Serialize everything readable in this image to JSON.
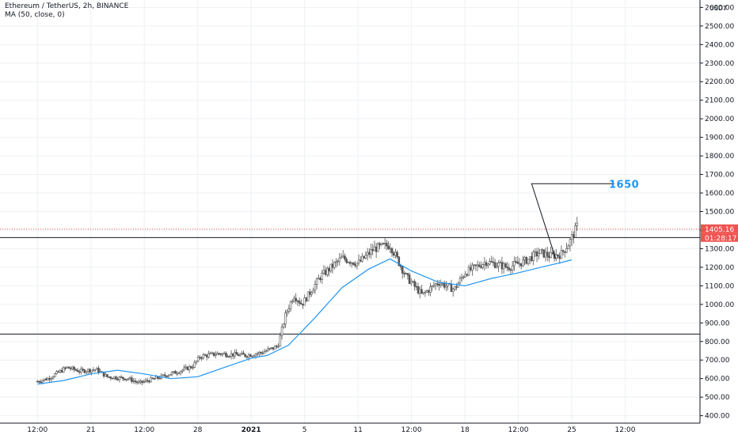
{
  "header": {
    "symbol_line": "Ethereum / TetherUS, 2h, BINANCE",
    "ma_line": "MA (50, close, 0)"
  },
  "colors": {
    "up": "#26a69a",
    "candle": "#555555",
    "ma": "#2196f3",
    "grid": "#eef0f3",
    "price_tag": "#ef5350",
    "hline": "#131722",
    "target": "#2196f3"
  },
  "chart_data": {
    "type": "candlestick",
    "currency": "USDT",
    "y_ticks": [
      400,
      500,
      600,
      700,
      800,
      900,
      1000,
      1100,
      1200,
      1300,
      1400,
      1500,
      1600,
      1700,
      1800,
      1900,
      2000,
      2100,
      2200,
      2300,
      2400,
      2500,
      2600
    ],
    "y_tick_labels": [
      "400.00",
      "500.00",
      "600.00",
      "700.00",
      "800.00",
      "900.00",
      "1000.00",
      "1100.00",
      "1200.00",
      "1300.00",
      "1400.00",
      "1500.00",
      "1600.00",
      "1700.00",
      "1800.00",
      "1900.00",
      "2000.00",
      "2100.00",
      "2200.00",
      "2300.00",
      "2400.00",
      "2500.00",
      "2600.00"
    ],
    "x_ticks": [
      {
        "label": "12:00",
        "t": 0
      },
      {
        "label": "21",
        "t": 1
      },
      {
        "label": "12:00",
        "t": 2
      },
      {
        "label": "28",
        "t": 3
      },
      {
        "label": "2021",
        "t": 4,
        "bold": true
      },
      {
        "label": "5",
        "t": 5
      },
      {
        "label": "11",
        "t": 6
      },
      {
        "label": "12:00",
        "t": 7
      },
      {
        "label": "18",
        "t": 8
      },
      {
        "label": "12:00",
        "t": 9
      },
      {
        "label": "25",
        "t": 10
      },
      {
        "label": "12:00",
        "t": 11
      }
    ],
    "close_path": [
      [
        0,
        585
      ],
      [
        0.2,
        600
      ],
      [
        0.55,
        660
      ],
      [
        0.8,
        640
      ],
      [
        1.1,
        650
      ],
      [
        1.3,
        610
      ],
      [
        1.7,
        600
      ],
      [
        1.9,
        575
      ],
      [
        2.2,
        600
      ],
      [
        2.6,
        635
      ],
      [
        2.9,
        665
      ],
      [
        3.05,
        720
      ],
      [
        3.4,
        735
      ],
      [
        3.9,
        725
      ],
      [
        4.2,
        740
      ],
      [
        4.5,
        775
      ],
      [
        4.65,
        950
      ],
      [
        4.8,
        1050
      ],
      [
        4.95,
        1000
      ],
      [
        5.3,
        1150
      ],
      [
        5.7,
        1250
      ],
      [
        6.0,
        1220
      ],
      [
        6.3,
        1300
      ],
      [
        6.6,
        1320
      ],
      [
        6.9,
        1150
      ],
      [
        7.2,
        1050
      ],
      [
        7.5,
        1120
      ],
      [
        7.8,
        1080
      ],
      [
        8.0,
        1170
      ],
      [
        8.4,
        1230
      ],
      [
        8.8,
        1200
      ],
      [
        9.1,
        1230
      ],
      [
        9.4,
        1280
      ],
      [
        9.6,
        1260
      ],
      [
        9.8,
        1270
      ],
      [
        9.95,
        1330
      ],
      [
        10.1,
        1420
      ]
    ],
    "ma_path": [
      [
        0,
        570
      ],
      [
        0.5,
        590
      ],
      [
        1.0,
        625
      ],
      [
        1.5,
        645
      ],
      [
        2.0,
        625
      ],
      [
        2.5,
        600
      ],
      [
        3.0,
        610
      ],
      [
        3.5,
        660
      ],
      [
        4.0,
        710
      ],
      [
        4.3,
        725
      ],
      [
        4.7,
        780
      ],
      [
        5.2,
        930
      ],
      [
        5.7,
        1090
      ],
      [
        6.2,
        1190
      ],
      [
        6.6,
        1245
      ],
      [
        7.0,
        1180
      ],
      [
        7.5,
        1120
      ],
      [
        8.0,
        1100
      ],
      [
        8.5,
        1140
      ],
      [
        9.0,
        1170
      ],
      [
        9.5,
        1205
      ],
      [
        9.8,
        1225
      ],
      [
        10.0,
        1240
      ]
    ],
    "horizontal_levels": [
      1360,
      840
    ],
    "current_price": 1405.16,
    "current_price_label": "1405.16",
    "countdown_label": "01:28:17",
    "target_label": "1650",
    "target_value": 1650,
    "annotation_line": [
      [
        9.7,
        1245
      ],
      [
        9.25,
        1650
      ],
      [
        10.8,
        1650
      ]
    ],
    "y_range": [
      360,
      2640
    ],
    "x_range": [
      -0.7,
      12.4
    ]
  }
}
